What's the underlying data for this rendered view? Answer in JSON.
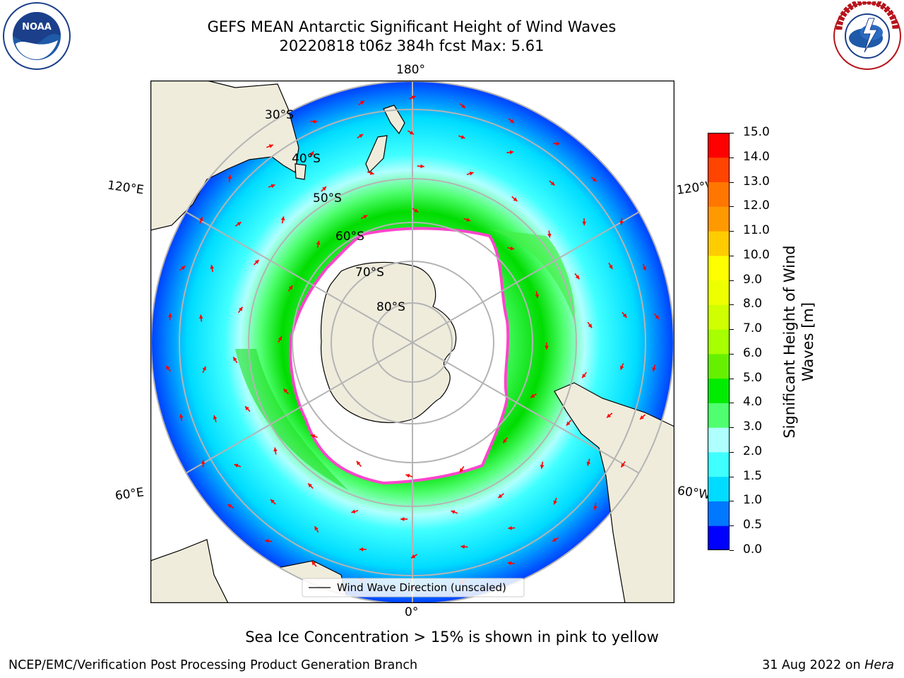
{
  "header": {
    "title_line1": "GEFS MEAN Antarctic Significant Height of Wind Waves",
    "title_line2": "20220818 t06z 384h fcst   Max: 5.61"
  },
  "logos": {
    "left": {
      "name": "NOAA",
      "ring_text": "NATIONAL OCEANIC AND ATMOSPHERIC ADMINISTRATION · U.S. DEPARTMENT OF COMMERCE"
    },
    "right": {
      "name": "NATIONAL WEATHER SERVICE"
    }
  },
  "map": {
    "projection": "south-polar-stereographic",
    "longitude_labels": {
      "top": "180°",
      "bottom": "0°",
      "left_upper": "120°E",
      "left_lower": "60°E",
      "right_upper": "120°W",
      "right_lower": "60°W"
    },
    "latitude_labels": [
      "30°S",
      "40°S",
      "50°S",
      "60°S",
      "70°S",
      "80°S"
    ],
    "legend": {
      "label": "Wind Wave Direction (unscaled)"
    },
    "colors": {
      "land": "#efecdc",
      "ice_edge": "#ff44cc",
      "arrow": "#ff0000",
      "grid": "#b4b4b4"
    }
  },
  "colorbar": {
    "label": "Significant Height of Wind Waves [m]",
    "ticks": [
      "0.0",
      "0.5",
      "1.0",
      "1.5",
      "2.0",
      "3.0",
      "4.0",
      "5.0",
      "6.0",
      "7.0",
      "8.0",
      "9.0",
      "10.0",
      "11.0",
      "12.0",
      "13.0",
      "14.0",
      "15.0"
    ],
    "colors": [
      "#0000ff",
      "#0078ff",
      "#00dcff",
      "#40ffff",
      "#b0ffff",
      "#50ff70",
      "#00ec00",
      "#66f000",
      "#a8ff00",
      "#d0ff00",
      "#eeff00",
      "#ffff00",
      "#ffcc00",
      "#ff9900",
      "#ff7700",
      "#ff4400",
      "#ff0000"
    ]
  },
  "chart_data": {
    "type": "heatmap",
    "title": "GEFS MEAN Antarctic Significant Height of Wind Waves",
    "subtitle": "20220818 t06z 384h fcst   Max: 5.61",
    "variable": "Significant Height of Wind Waves [m]",
    "max_value": 5.61,
    "color_scale_bounds": [
      0.0,
      0.5,
      1.0,
      1.5,
      2.0,
      3.0,
      4.0,
      5.0,
      6.0,
      7.0,
      8.0,
      9.0,
      10.0,
      11.0,
      12.0,
      13.0,
      14.0,
      15.0
    ],
    "annotation": "Sea Ice Concentration > 15% is shown in pink to yellow"
  },
  "footer": {
    "note": "Sea Ice Concentration > 15% is shown in pink to yellow",
    "left": "NCEP/EMC/Verification Post Processing Product Generation Branch",
    "right_date": "31 Aug 2022 on",
    "right_host": "Hera"
  }
}
